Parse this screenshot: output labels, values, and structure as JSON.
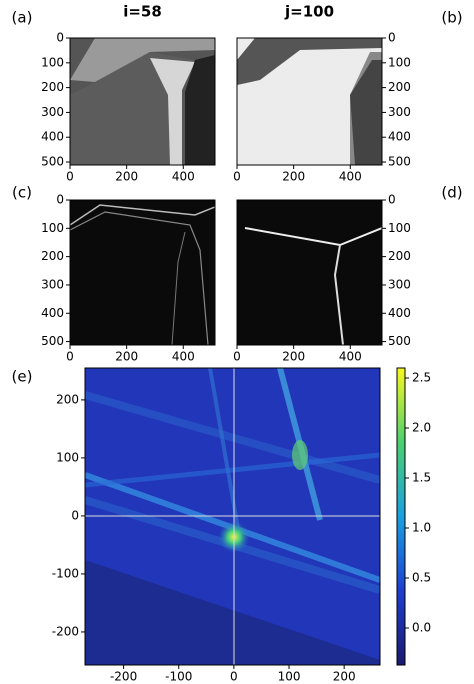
{
  "chart_data": [
    {
      "type": "image",
      "label": "(a)",
      "title": "i=58",
      "xlim": [
        0,
        512
      ],
      "ylim": [
        512,
        0
      ],
      "xticks": [
        0,
        200,
        400
      ],
      "yticks": [
        0,
        100,
        200,
        300,
        400,
        500
      ]
    },
    {
      "type": "image",
      "label": "(b)",
      "title": "j=100",
      "xlim": [
        0,
        512
      ],
      "ylim": [
        512,
        0
      ],
      "xticks": [
        0,
        200,
        400
      ],
      "yticks": [
        0,
        100,
        200,
        300,
        400,
        500
      ]
    },
    {
      "type": "image",
      "label": "(c)",
      "xlim": [
        0,
        512
      ],
      "ylim": [
        512,
        0
      ],
      "xticks": [
        0,
        200,
        400
      ],
      "yticks": [
        0,
        100,
        200,
        300,
        400,
        500
      ]
    },
    {
      "type": "image",
      "label": "(d)",
      "xlim": [
        0,
        512
      ],
      "ylim": [
        512,
        0
      ],
      "xticks": [
        0,
        200,
        400
      ],
      "yticks": [
        0,
        100,
        200,
        300,
        400,
        500
      ]
    },
    {
      "type": "heatmap",
      "label": "(e)",
      "xlim": [
        -270,
        265
      ],
      "ylim": [
        -257,
        255
      ],
      "xticks": [
        -200,
        -100,
        0,
        100,
        200
      ],
      "yticks": [
        -200,
        -100,
        0,
        100,
        200
      ],
      "colorbar_lim": [
        -0.37,
        2.6
      ],
      "colorbar_ticks": [
        {
          "value": 0,
          "label": "0.0"
        },
        {
          "value": 0.5,
          "label": "0.5"
        },
        {
          "value": 1,
          "label": "1.0"
        },
        {
          "value": 1.5,
          "label": "1.5"
        },
        {
          "value": 2,
          "label": "2.0"
        },
        {
          "value": 2.5,
          "label": "2.5"
        }
      ]
    }
  ]
}
